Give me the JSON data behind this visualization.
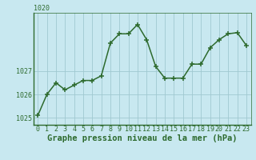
{
  "x": [
    0,
    1,
    2,
    3,
    4,
    5,
    6,
    7,
    8,
    9,
    10,
    11,
    12,
    13,
    14,
    15,
    16,
    17,
    18,
    19,
    20,
    21,
    22,
    23
  ],
  "y": [
    1025.1,
    1026.0,
    1026.5,
    1026.2,
    1026.4,
    1026.6,
    1026.6,
    1026.8,
    1028.2,
    1028.6,
    1028.6,
    1029.0,
    1028.35,
    1027.2,
    1026.7,
    1026.7,
    1026.7,
    1027.3,
    1027.3,
    1028.0,
    1028.35,
    1028.6,
    1028.65,
    1028.1
  ],
  "line_color": "#2d6a2d",
  "marker_color": "#2d6a2d",
  "bg_color": "#c8e8f0",
  "grid_color": "#a0c8d0",
  "axis_color": "#2d6a2d",
  "border_color": "#2d6a2d",
  "xlabel": "Graphe pression niveau de la mer (hPa)",
  "ylim": [
    1024.7,
    1029.5
  ],
  "yticks": [
    1025,
    1026,
    1027
  ],
  "ymax_label": "1020",
  "xticks": [
    0,
    1,
    2,
    3,
    4,
    5,
    6,
    7,
    8,
    9,
    10,
    11,
    12,
    13,
    14,
    15,
    16,
    17,
    18,
    19,
    20,
    21,
    22,
    23
  ],
  "tick_fontsize": 6.0,
  "xlabel_fontsize": 7.5,
  "marker_size": 4.0,
  "line_width": 1.1
}
